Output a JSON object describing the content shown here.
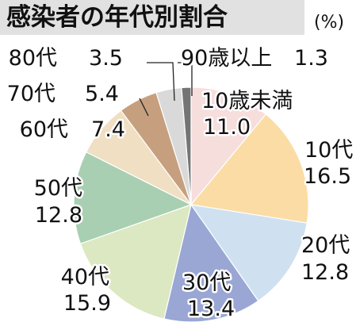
{
  "title": "感染者の年代別割合",
  "unit": "(%)",
  "chart_data": {
    "type": "pie",
    "title": "感染者の年代別割合",
    "unit": "(%)",
    "slices": [
      {
        "label": "10歳未満",
        "value": "11.0",
        "color": "#f6dedd"
      },
      {
        "label": "10代",
        "value": "16.5",
        "color": "#fbdca4"
      },
      {
        "label": "20代",
        "value": "12.8",
        "color": "#cfe1f1"
      },
      {
        "label": "30代",
        "value": "13.4",
        "color": "#9aa7d4"
      },
      {
        "label": "40代",
        "value": "15.9",
        "color": "#dbe8c1"
      },
      {
        "label": "50代",
        "value": "12.8",
        "color": "#a8cfb2"
      },
      {
        "label": "60代",
        "value": "7.4",
        "color": "#f0dfc2"
      },
      {
        "label": "70代",
        "value": "5.4",
        "color": "#c6a07e"
      },
      {
        "label": "80代",
        "value": "3.5",
        "color": "#d9d9d9"
      },
      {
        "label": "90歳以上",
        "value": "1.3",
        "color": "#747474"
      }
    ]
  }
}
